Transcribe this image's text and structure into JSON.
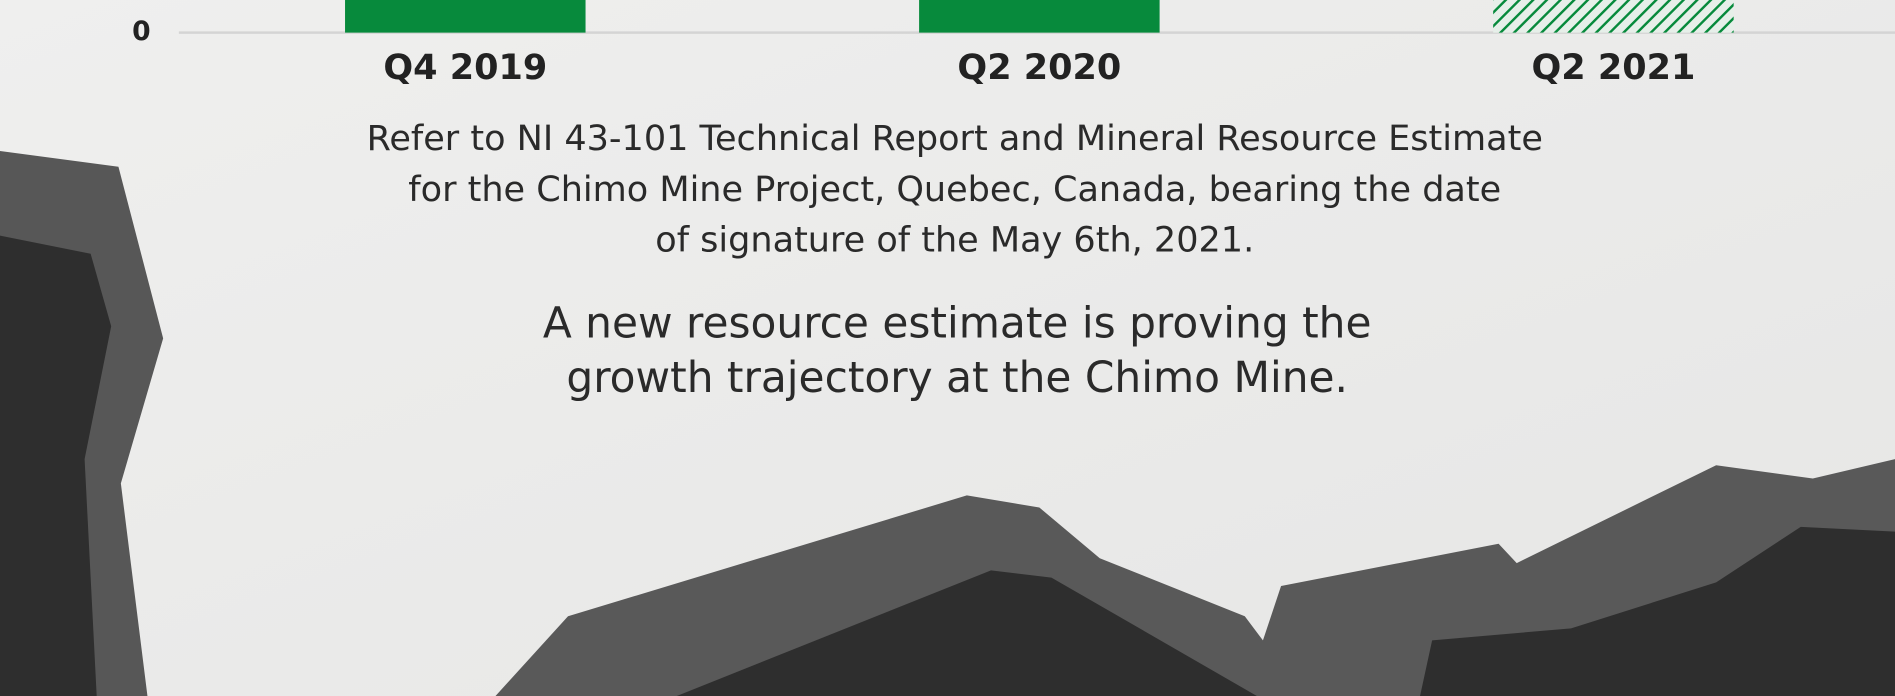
{
  "chart_data": {
    "type": "bar",
    "categories": [
      "Q4 2019",
      "Q2 2020",
      "Q2 2021"
    ],
    "color": "#078a3c",
    "hatched": [
      false,
      false,
      true
    ],
    "yticks": [
      0
    ],
    "footnote": [
      "Refer to NI 43-101 Technical Report and Mineral Resource Estimate",
      "for the Chimo Mine Project, Quebec, Canada, bearing the date",
      "of signature of the May 6th, 2021."
    ],
    "tagline": [
      "A new resource estimate is proving the",
      "growth trajectory at the Chimo Mine."
    ]
  }
}
